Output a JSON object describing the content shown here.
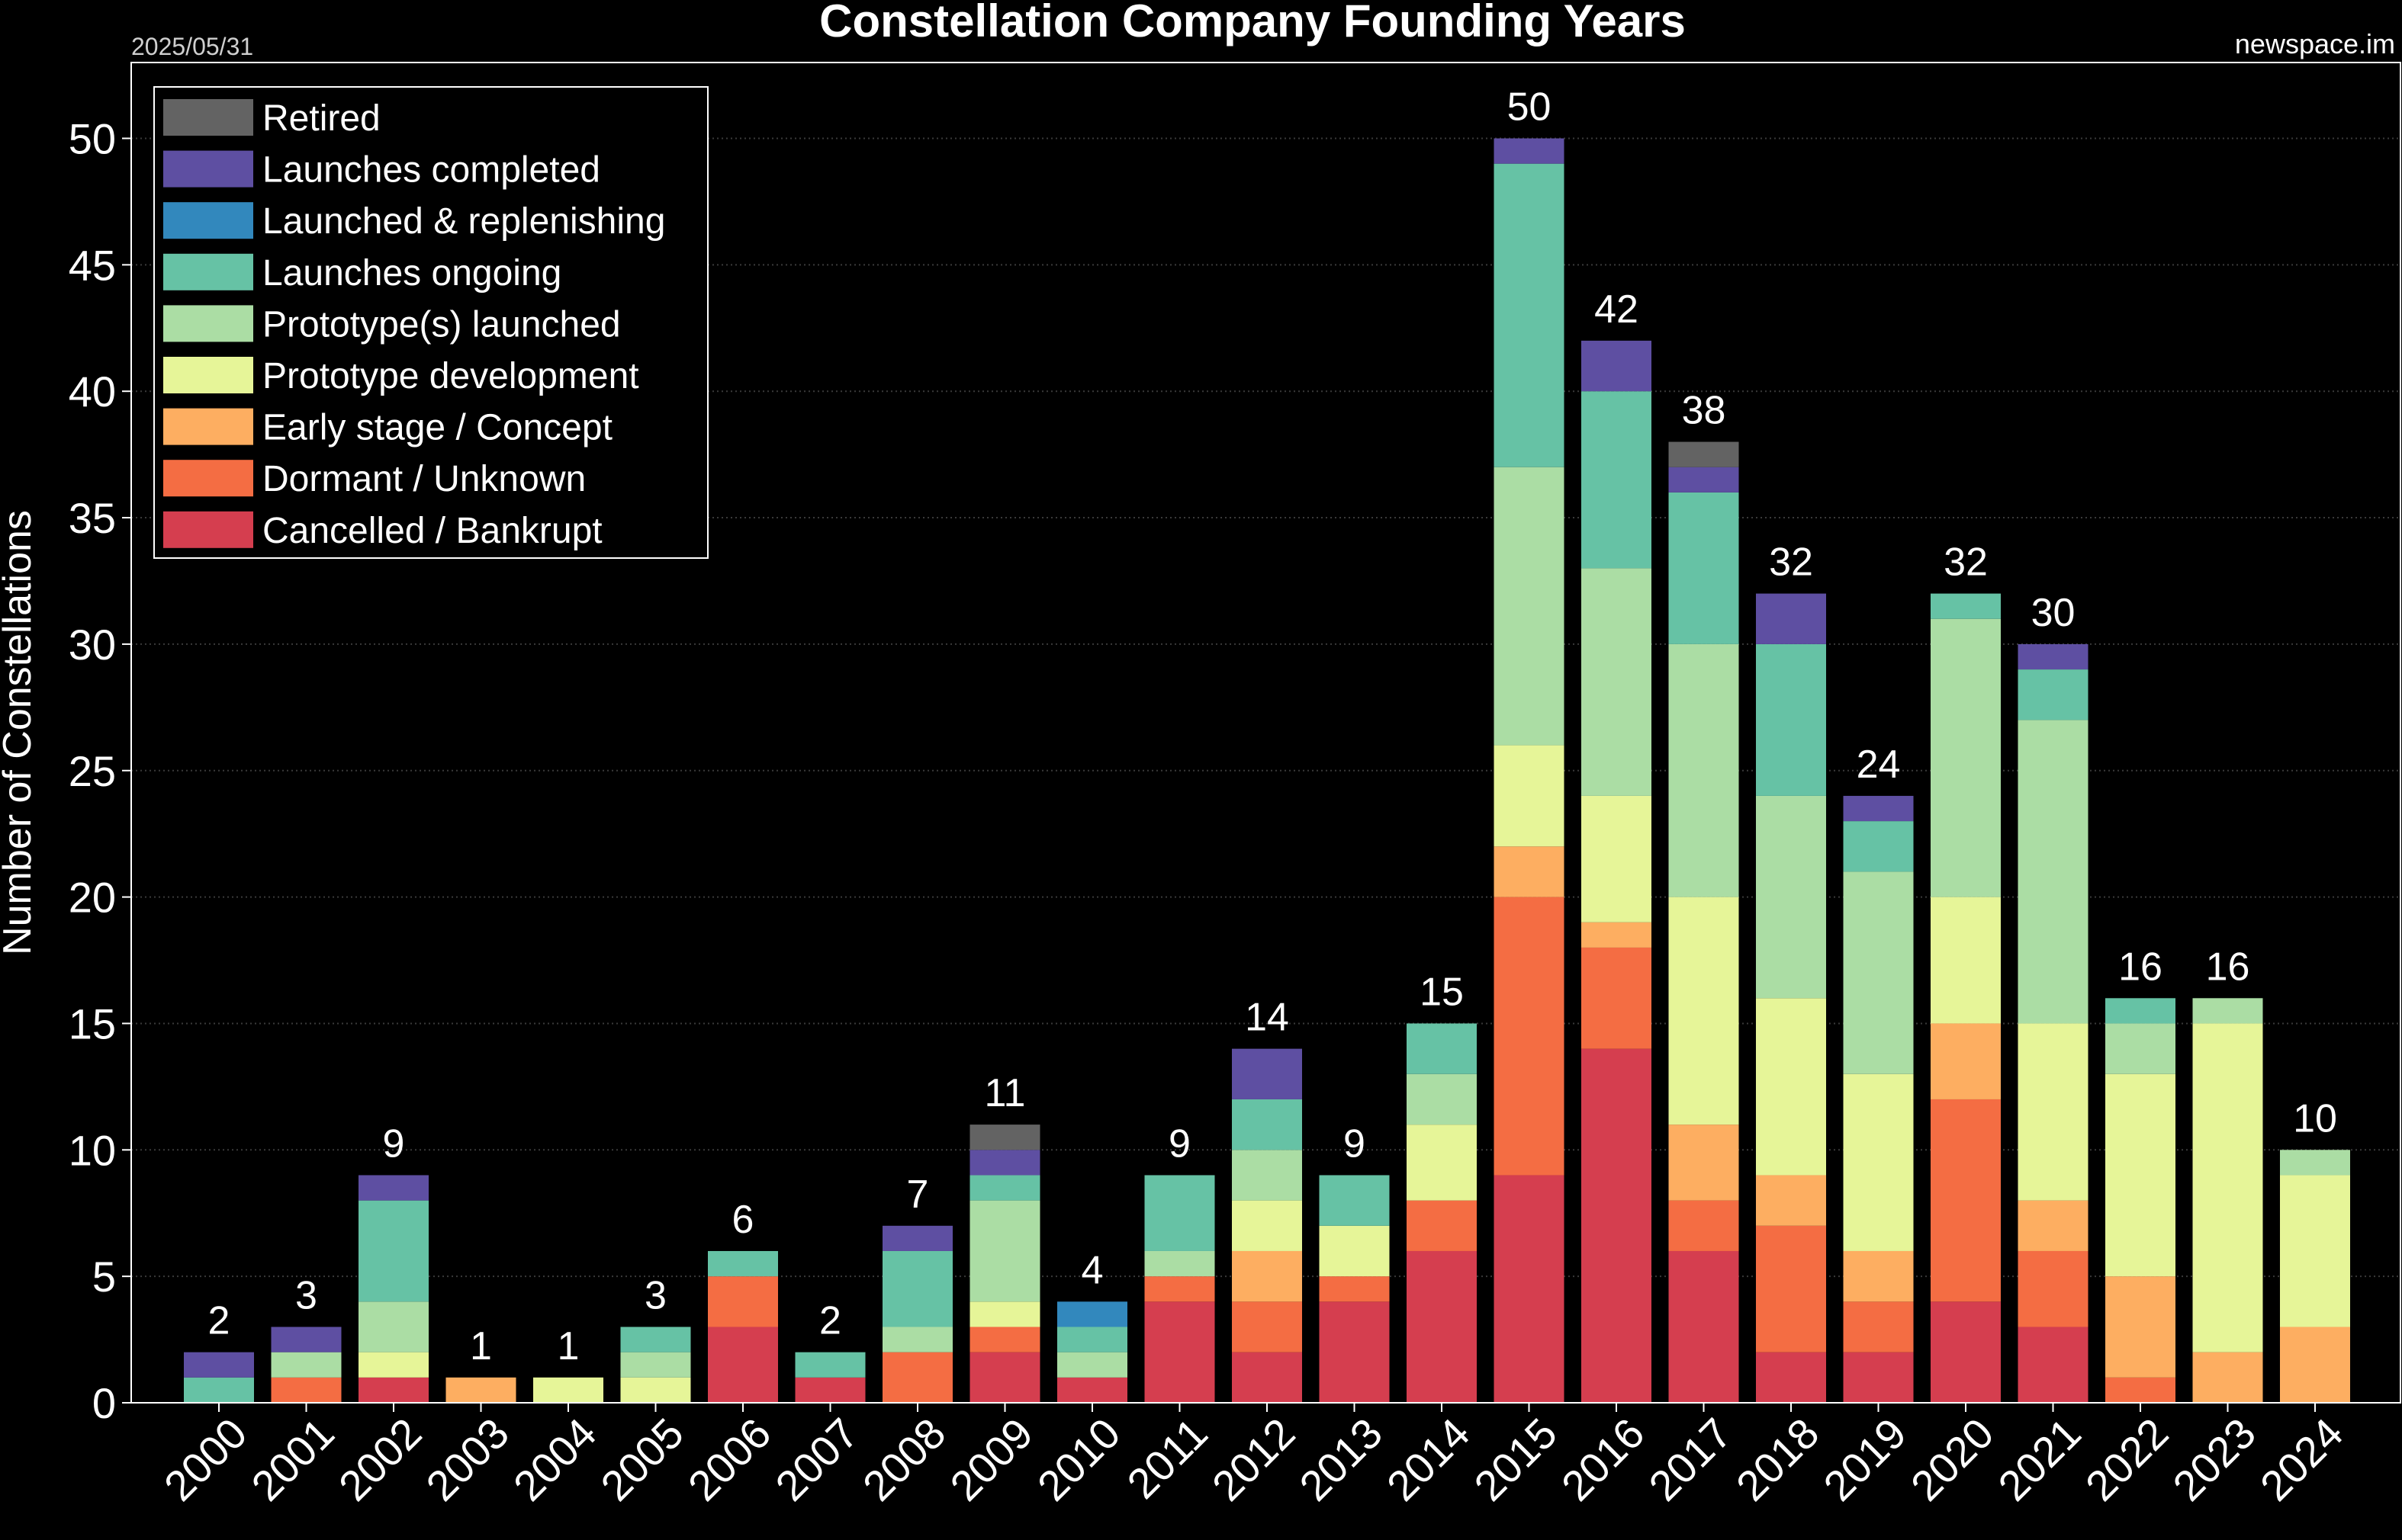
{
  "header": {
    "date": "2025/05/31",
    "source": "newspace.im"
  },
  "chart_data": {
    "type": "bar",
    "stacked": true,
    "title": "Constellation Company Founding Years",
    "xlabel": "",
    "ylabel": "Number of Constellations",
    "ylim": [
      0,
      53
    ],
    "yticks": [
      0,
      5,
      10,
      15,
      20,
      25,
      30,
      35,
      40,
      45,
      50
    ],
    "grid": true,
    "legend_position": "top-left",
    "categories": [
      "2000",
      "2001",
      "2002",
      "2003",
      "2004",
      "2005",
      "2006",
      "2007",
      "2008",
      "2009",
      "2010",
      "2011",
      "2012",
      "2013",
      "2014",
      "2015",
      "2016",
      "2017",
      "2018",
      "2019",
      "2020",
      "2021",
      "2022",
      "2023",
      "2024"
    ],
    "totals": [
      2,
      3,
      9,
      1,
      1,
      3,
      6,
      2,
      7,
      11,
      4,
      9,
      14,
      9,
      15,
      50,
      42,
      38,
      32,
      24,
      32,
      30,
      16,
      16,
      10
    ],
    "legend_order": [
      "Retired",
      "Launches completed",
      "Launched & replenishing",
      "Launches ongoing",
      "Prototype(s) launched",
      "Prototype development",
      "Early stage / Concept",
      "Dormant / Unknown",
      "Cancelled / Bankrupt"
    ],
    "series": [
      {
        "name": "Cancelled / Bankrupt",
        "color": "#d53e4f",
        "values": [
          0,
          0,
          1,
          0,
          0,
          0,
          3,
          1,
          0,
          2,
          1,
          4,
          2,
          4,
          6,
          9,
          14,
          6,
          2,
          2,
          4,
          3,
          0,
          0,
          0
        ]
      },
      {
        "name": "Dormant / Unknown",
        "color": "#f46d43",
        "values": [
          0,
          1,
          0,
          0,
          0,
          0,
          2,
          0,
          2,
          1,
          0,
          1,
          2,
          1,
          2,
          11,
          4,
          2,
          5,
          2,
          8,
          3,
          1,
          0,
          0
        ]
      },
      {
        "name": "Early stage / Concept",
        "color": "#fdae61",
        "values": [
          0,
          0,
          0,
          1,
          0,
          0,
          0,
          0,
          0,
          0,
          0,
          0,
          2,
          0,
          0,
          2,
          1,
          3,
          2,
          2,
          3,
          2,
          4,
          2,
          3
        ]
      },
      {
        "name": "Prototype development",
        "color": "#e6f598",
        "values": [
          0,
          0,
          1,
          0,
          1,
          1,
          0,
          0,
          0,
          1,
          0,
          0,
          2,
          2,
          3,
          4,
          5,
          9,
          7,
          7,
          5,
          7,
          8,
          13,
          6
        ]
      },
      {
        "name": "Prototype(s) launched",
        "color": "#abdda4",
        "values": [
          0,
          1,
          2,
          0,
          0,
          1,
          0,
          0,
          1,
          4,
          1,
          1,
          2,
          0,
          2,
          11,
          9,
          10,
          8,
          8,
          11,
          12,
          2,
          1,
          1
        ]
      },
      {
        "name": "Launches ongoing",
        "color": "#66c2a5",
        "values": [
          1,
          0,
          4,
          0,
          0,
          1,
          1,
          1,
          3,
          1,
          1,
          3,
          2,
          2,
          2,
          12,
          7,
          6,
          6,
          2,
          1,
          2,
          1,
          0,
          0
        ]
      },
      {
        "name": "Launched & replenishing",
        "color": "#3288bd",
        "values": [
          0,
          0,
          0,
          0,
          0,
          0,
          0,
          0,
          0,
          0,
          1,
          0,
          0,
          0,
          0,
          0,
          0,
          0,
          0,
          0,
          0,
          0,
          0,
          0,
          0
        ]
      },
      {
        "name": "Launches completed",
        "color": "#5e4fa2",
        "values": [
          1,
          1,
          1,
          0,
          0,
          0,
          0,
          0,
          1,
          1,
          0,
          0,
          2,
          0,
          0,
          1,
          2,
          1,
          2,
          1,
          0,
          1,
          0,
          0,
          0
        ]
      },
      {
        "name": "Retired",
        "color": "#636363",
        "values": [
          0,
          0,
          0,
          0,
          0,
          0,
          0,
          0,
          0,
          1,
          0,
          0,
          0,
          0,
          0,
          0,
          0,
          1,
          0,
          0,
          0,
          0,
          0,
          0,
          0
        ]
      }
    ]
  }
}
